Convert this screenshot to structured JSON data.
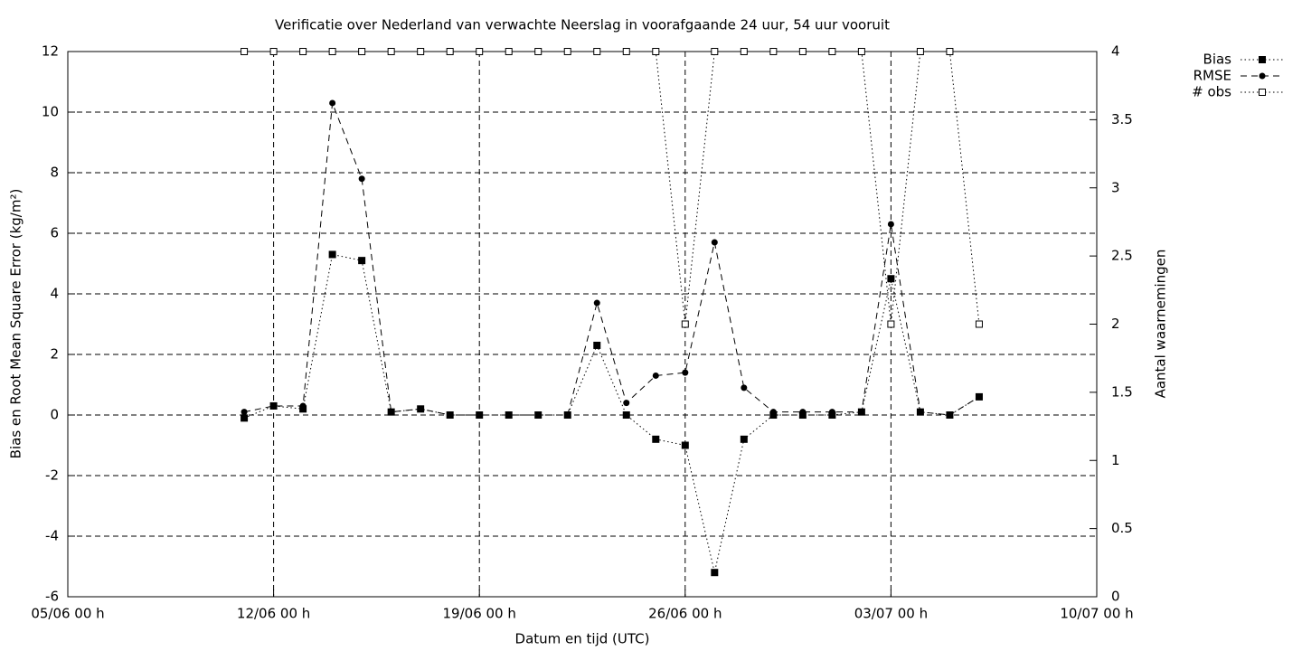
{
  "chart_data": {
    "type": "line",
    "title": "Verificatie over Nederland van verwachte Neerslag in voorafgaande 24 uur, 54 uur vooruit",
    "xlabel": "Datum en tijd (UTC)",
    "ylabel": "Bias en Root Mean Square Error (kg/m²)",
    "y2label": "Aantal waarnemingen",
    "x": [
      "11/06 00 h",
      "12/06 00 h",
      "13/06 00 h",
      "14/06 00 h",
      "15/06 00 h",
      "16/06 00 h",
      "17/06 00 h",
      "18/06 00 h",
      "19/06 00 h",
      "20/06 00 h",
      "21/06 00 h",
      "22/06 00 h",
      "23/06 00 h",
      "24/06 00 h",
      "25/06 00 h",
      "26/06 00 h",
      "27/06 00 h",
      "28/06 00 h",
      "29/06 00 h",
      "30/06 00 h",
      "01/07 00 h",
      "02/07 00 h",
      "03/07 00 h",
      "04/07 00 h",
      "05/07 00 h",
      "06/07 00 h"
    ],
    "xlim": [
      "05/06 00 h",
      "10/07 00 h"
    ],
    "xticks": [
      "05/06 00 h",
      "12/06 00 h",
      "19/06 00 h",
      "26/06 00 h",
      "03/07 00 h",
      "10/07 00 h"
    ],
    "ylim": [
      -6,
      12
    ],
    "yticks": [
      -6,
      -4,
      -2,
      0,
      2,
      4,
      6,
      8,
      10,
      12
    ],
    "y2lim": [
      0,
      4
    ],
    "y2ticks": [
      0,
      0.5,
      1,
      1.5,
      2,
      2.5,
      3,
      3.5,
      4
    ],
    "grid": true,
    "legend": "outside-top-right",
    "series": [
      {
        "name": "Bias",
        "color": "#000000",
        "dash": "dotted",
        "marker": "filled-square",
        "values": [
          -0.1,
          0.3,
          0.2,
          5.3,
          5.1,
          0.1,
          0.2,
          0,
          0,
          0,
          0,
          0,
          2.3,
          0,
          -0.8,
          -1.0,
          -5.2,
          -0.8,
          0,
          0,
          0,
          0.1,
          4.5,
          0.1,
          0,
          0.6
        ]
      },
      {
        "name": "RMSE",
        "color": "#000000",
        "dash": "dashed",
        "marker": "filled-circle",
        "values": [
          0.1,
          0.3,
          0.3,
          10.3,
          7.8,
          0.1,
          0.2,
          0,
          0,
          0,
          0,
          0,
          3.7,
          0.4,
          1.3,
          1.4,
          5.7,
          0.9,
          0.1,
          0.1,
          0.1,
          0.1,
          6.3,
          0.1,
          0,
          0.6
        ]
      },
      {
        "name": "# obs",
        "color": "#000000",
        "dash": "dotted",
        "marker": "open-square",
        "axis": "y2",
        "values": [
          4,
          4,
          4,
          4,
          4,
          4,
          4,
          4,
          4,
          4,
          4,
          4,
          4,
          4,
          4,
          2,
          4,
          4,
          4,
          4,
          4,
          4,
          2,
          4,
          4,
          2
        ]
      }
    ]
  }
}
